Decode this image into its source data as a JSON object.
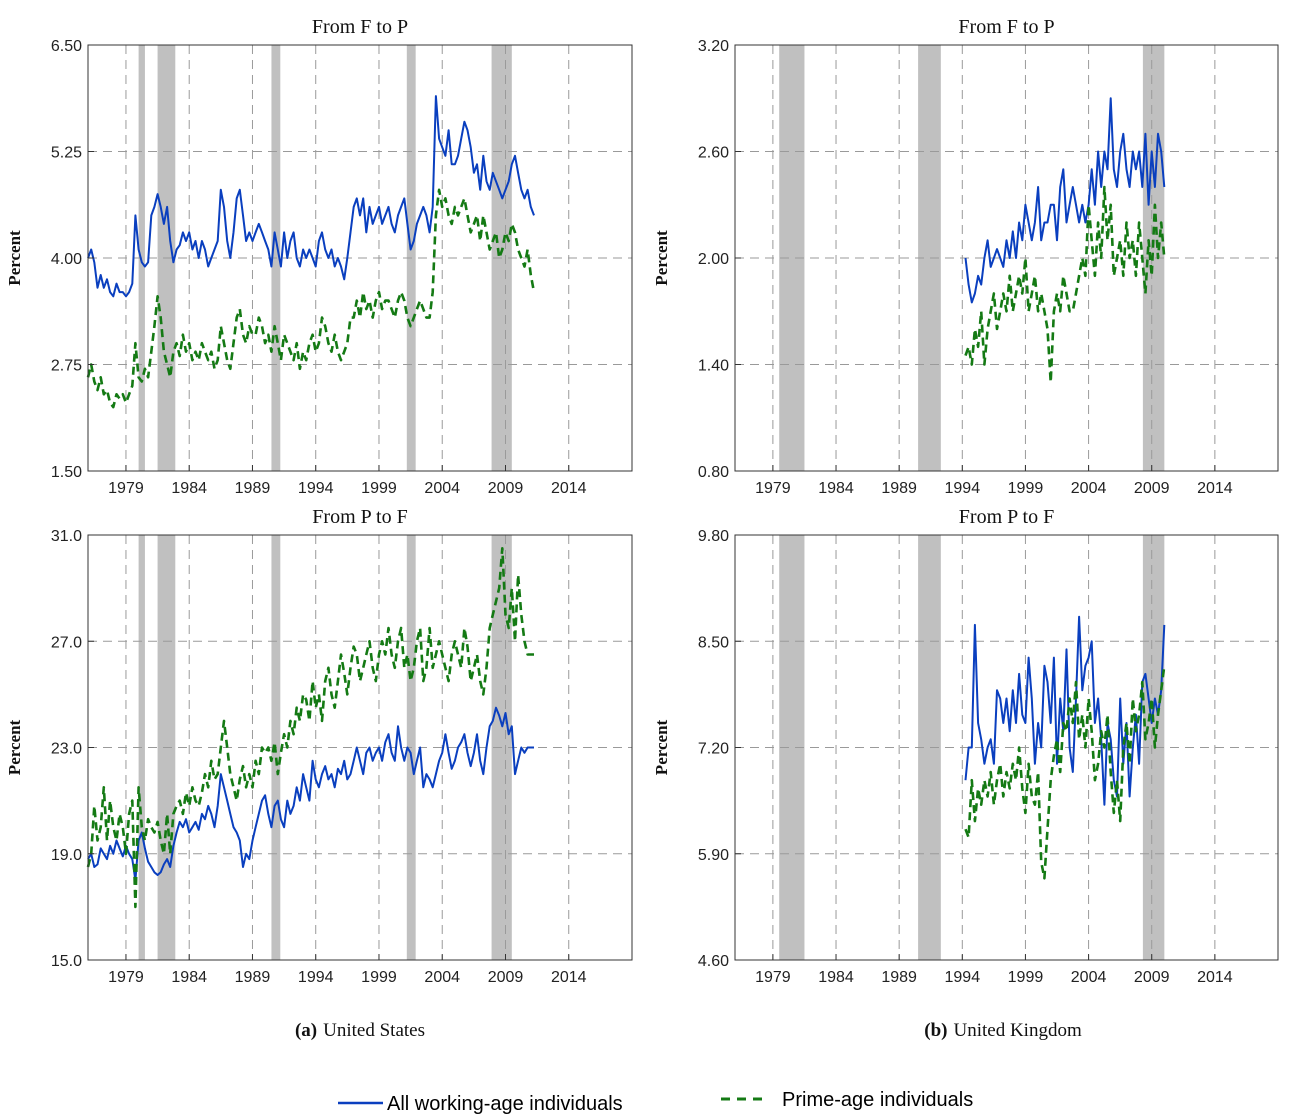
{
  "captions": [
    {
      "tag": "(a)",
      "text": "United States"
    },
    {
      "tag": "(b)",
      "text": "United Kingdom"
    }
  ],
  "legend": [
    {
      "name": "All working-age individuals",
      "color": "#0a3fbf",
      "dash": "solid"
    },
    {
      "name": "Prime-age individuals",
      "color": "#147a14",
      "dash": "dashed"
    }
  ],
  "colors": {
    "recession": "#c0c0c0",
    "grid": "#9a9a9a",
    "series_all": "#0a3fbf",
    "series_prime": "#147a14"
  },
  "chart_data": [
    {
      "type": "line",
      "title": "From F to P",
      "country": "United States",
      "ylabel": "Percent",
      "xlim": [
        1976,
        2019
      ],
      "ylim": [
        1.5,
        6.5
      ],
      "xticks": [
        "1979",
        "1984",
        "1989",
        "1994",
        "1999",
        "2004",
        "2009",
        "2014"
      ],
      "yticks": [
        "1.50",
        "2.75",
        "4.00",
        "5.25",
        "6.50"
      ],
      "recessions": [
        [
          1980.0,
          1980.5
        ],
        [
          1981.5,
          1982.9
        ],
        [
          1990.5,
          1991.2
        ],
        [
          2001.2,
          2001.9
        ],
        [
          2007.9,
          2009.5
        ]
      ],
      "series": [
        {
          "name": "All working-age individuals",
          "x_start": 1976.0,
          "x_step": 0.25,
          "values": [
            4.0,
            4.1,
            3.95,
            3.65,
            3.8,
            3.65,
            3.75,
            3.6,
            3.55,
            3.7,
            3.6,
            3.6,
            3.55,
            3.6,
            3.7,
            4.5,
            4.1,
            3.95,
            3.9,
            3.95,
            4.5,
            4.6,
            4.75,
            4.6,
            4.4,
            4.6,
            4.2,
            3.95,
            4.1,
            4.15,
            4.3,
            4.2,
            4.3,
            4.1,
            4.2,
            4.0,
            4.2,
            4.1,
            3.9,
            4.0,
            4.1,
            4.2,
            4.8,
            4.6,
            4.2,
            4.0,
            4.3,
            4.7,
            4.8,
            4.5,
            4.2,
            4.3,
            4.2,
            4.3,
            4.4,
            4.3,
            4.2,
            4.1,
            3.9,
            4.3,
            4.1,
            3.9,
            4.3,
            4.0,
            4.2,
            4.3,
            4.0,
            3.9,
            4.1,
            4.0,
            4.1,
            4.0,
            3.9,
            4.2,
            4.3,
            4.1,
            4.0,
            4.1,
            3.9,
            4.0,
            3.9,
            3.75,
            4.0,
            4.3,
            4.6,
            4.7,
            4.5,
            4.7,
            4.3,
            4.6,
            4.4,
            4.5,
            4.6,
            4.4,
            4.5,
            4.6,
            4.4,
            4.3,
            4.5,
            4.6,
            4.7,
            4.4,
            4.1,
            4.2,
            4.4,
            4.5,
            4.6,
            4.5,
            4.3,
            4.6,
            5.9,
            5.4,
            5.3,
            5.2,
            5.5,
            5.1,
            5.1,
            5.2,
            5.4,
            5.6,
            5.5,
            5.3,
            5.0,
            5.1,
            4.8,
            5.2,
            4.9,
            4.8,
            5.0,
            4.9,
            4.8,
            4.7,
            4.8,
            4.9,
            5.1,
            5.2,
            5.0,
            4.8,
            4.7,
            4.8,
            4.6,
            4.5
          ]
        },
        {
          "name": "Prime-age individuals",
          "x_start": 1976.0,
          "x_step": 0.25,
          "values": [
            2.6,
            2.75,
            2.55,
            2.45,
            2.6,
            2.4,
            2.45,
            2.3,
            2.25,
            2.4,
            2.35,
            2.4,
            2.3,
            2.4,
            2.5,
            3.0,
            2.6,
            2.55,
            2.7,
            2.6,
            2.9,
            3.2,
            3.55,
            3.3,
            2.9,
            2.75,
            2.6,
            2.9,
            3.0,
            2.85,
            3.1,
            2.9,
            3.0,
            2.8,
            2.9,
            2.8,
            3.0,
            2.9,
            2.8,
            2.9,
            2.7,
            2.8,
            3.2,
            3.0,
            2.8,
            2.7,
            3.0,
            3.3,
            3.4,
            3.1,
            3.0,
            3.2,
            3.1,
            3.1,
            3.3,
            3.2,
            3.0,
            3.1,
            2.9,
            3.2,
            3.0,
            2.8,
            3.1,
            3.0,
            2.9,
            2.8,
            3.0,
            2.7,
            2.9,
            2.8,
            3.0,
            3.1,
            2.9,
            3.0,
            3.3,
            3.2,
            3.0,
            2.9,
            3.1,
            2.9,
            2.8,
            2.9,
            3.0,
            3.3,
            3.3,
            3.5,
            3.3,
            3.6,
            3.4,
            3.5,
            3.3,
            3.5,
            3.6,
            3.4,
            3.5,
            3.5,
            3.4,
            3.3,
            3.5,
            3.6,
            3.5,
            3.3,
            3.2,
            3.3,
            3.4,
            3.5,
            3.4,
            3.3,
            3.3,
            3.6,
            4.5,
            4.8,
            4.6,
            4.7,
            4.5,
            4.4,
            4.6,
            4.5,
            4.6,
            4.7,
            4.5,
            4.3,
            4.4,
            4.5,
            4.2,
            4.5,
            4.3,
            4.1,
            4.2,
            4.3,
            4.0,
            4.1,
            4.3,
            4.2,
            4.4,
            4.3,
            4.1,
            4.0,
            3.9,
            4.1,
            3.8,
            3.6
          ]
        }
      ]
    },
    {
      "type": "line",
      "title": "From F to P",
      "country": "United Kingdom",
      "ylabel": "Percent",
      "xlim": [
        1976,
        2019
      ],
      "ylim": [
        0.8,
        3.2
      ],
      "xticks": [
        "1979",
        "1984",
        "1989",
        "1994",
        "1999",
        "2004",
        "2009",
        "2014"
      ],
      "yticks": [
        "0.80",
        "1.40",
        "2.00",
        "2.60",
        "3.20"
      ],
      "recessions": [
        [
          1979.5,
          1981.5
        ],
        [
          1990.5,
          1992.3
        ],
        [
          2008.3,
          2010.0
        ]
      ],
      "series": [
        {
          "name": "All working-age individuals",
          "x_start": 1994.25,
          "x_step": 0.25,
          "values": [
            2.0,
            1.85,
            1.75,
            1.8,
            1.9,
            1.85,
            2.0,
            2.1,
            1.95,
            2.0,
            2.05,
            2.0,
            1.95,
            2.1,
            2.0,
            2.15,
            2.0,
            2.2,
            2.1,
            2.3,
            2.2,
            2.1,
            2.2,
            2.4,
            2.1,
            2.2,
            2.2,
            2.3,
            2.3,
            2.1,
            2.4,
            2.5,
            2.2,
            2.3,
            2.4,
            2.3,
            2.2,
            2.3,
            2.2,
            2.3,
            2.5,
            2.3,
            2.6,
            2.4,
            2.6,
            2.5,
            2.9,
            2.5,
            2.4,
            2.6,
            2.7,
            2.5,
            2.4,
            2.6,
            2.5,
            2.6,
            2.4,
            2.7,
            2.3,
            2.6,
            2.4,
            2.7,
            2.6,
            2.4
          ]
        },
        {
          "name": "Prime-age individuals",
          "x_start": 1994.25,
          "x_step": 0.25,
          "values": [
            1.45,
            1.5,
            1.4,
            1.6,
            1.5,
            1.7,
            1.4,
            1.6,
            1.7,
            1.8,
            1.6,
            1.7,
            1.8,
            1.7,
            1.9,
            1.7,
            1.8,
            1.9,
            1.8,
            2.0,
            1.7,
            1.8,
            1.9,
            1.7,
            1.8,
            1.7,
            1.6,
            1.3,
            1.7,
            1.8,
            1.7,
            1.9,
            1.8,
            1.7,
            1.7,
            1.8,
            1.9,
            2.0,
            1.9,
            2.3,
            2.1,
            1.9,
            2.2,
            2.0,
            2.4,
            2.1,
            2.3,
            1.9,
            2.0,
            2.1,
            1.9,
            2.2,
            2.0,
            2.1,
            1.9,
            2.2,
            2.0,
            1.8,
            2.1,
            1.9,
            2.3,
            2.0,
            2.2,
            2.0
          ]
        }
      ]
    },
    {
      "type": "line",
      "title": "From P to F",
      "country": "United States",
      "ylabel": "Percent",
      "xlim": [
        1976,
        2019
      ],
      "ylim": [
        15.0,
        31.0
      ],
      "xticks": [
        "1979",
        "1984",
        "1989",
        "1994",
        "1999",
        "2004",
        "2009",
        "2014"
      ],
      "yticks": [
        "15.0",
        "19.0",
        "23.0",
        "27.0",
        "31.0"
      ],
      "recessions": [
        [
          1980.0,
          1980.5
        ],
        [
          1981.5,
          1982.9
        ],
        [
          1990.5,
          1991.2
        ],
        [
          2001.2,
          2001.9
        ],
        [
          2007.9,
          2009.5
        ]
      ],
      "series": [
        {
          "name": "All working-age individuals",
          "x_start": 1976.0,
          "x_step": 0.25,
          "values": [
            18.8,
            19.0,
            18.5,
            18.6,
            19.2,
            19.0,
            18.8,
            19.3,
            19.0,
            19.5,
            19.2,
            18.9,
            19.3,
            19.0,
            18.8,
            18.0,
            19.5,
            19.8,
            19.2,
            18.7,
            18.5,
            18.3,
            18.2,
            18.3,
            18.6,
            18.8,
            18.5,
            19.3,
            19.8,
            20.2,
            20.0,
            20.3,
            19.8,
            20.0,
            20.2,
            19.9,
            20.5,
            20.3,
            20.8,
            20.5,
            20.0,
            20.8,
            22.0,
            21.5,
            21.0,
            20.5,
            20.0,
            19.8,
            19.5,
            18.5,
            19.0,
            18.8,
            19.5,
            20.0,
            20.5,
            21.0,
            21.2,
            20.5,
            20.0,
            20.8,
            21.0,
            20.3,
            20.0,
            21.0,
            20.5,
            20.8,
            21.5,
            21.0,
            22.0,
            21.5,
            21.0,
            22.5,
            21.8,
            21.5,
            22.0,
            22.3,
            21.8,
            22.0,
            21.5,
            22.2,
            22.0,
            22.5,
            21.8,
            22.0,
            22.5,
            23.0,
            22.5,
            22.0,
            22.8,
            23.0,
            22.5,
            22.8,
            23.0,
            22.5,
            23.2,
            23.5,
            22.8,
            22.5,
            23.8,
            23.0,
            22.5,
            23.0,
            22.8,
            22.0,
            22.5,
            23.0,
            21.5,
            22.0,
            21.8,
            21.5,
            22.0,
            22.5,
            22.8,
            23.5,
            22.8,
            22.2,
            22.5,
            23.0,
            23.2,
            23.5,
            22.8,
            22.3,
            22.8,
            23.5,
            22.5,
            22.0,
            23.0,
            23.8,
            24.0,
            24.5,
            24.2,
            23.8,
            24.3,
            23.5,
            23.8,
            22.0,
            22.5,
            23.0,
            22.8,
            23.0,
            23.0,
            23.0
          ]
        },
        {
          "name": "Prime-age individuals",
          "x_start": 1976.0,
          "x_step": 0.25,
          "values": [
            18.5,
            19.0,
            20.8,
            19.5,
            20.0,
            21.5,
            19.5,
            21.0,
            20.0,
            19.5,
            20.5,
            20.0,
            19.0,
            20.5,
            21.0,
            17.0,
            21.5,
            20.0,
            19.5,
            20.3,
            20.0,
            19.8,
            20.2,
            19.5,
            19.0,
            20.5,
            19.0,
            20.5,
            20.8,
            21.0,
            20.5,
            21.3,
            20.8,
            21.5,
            21.0,
            20.8,
            21.3,
            22.0,
            21.5,
            22.5,
            21.8,
            22.0,
            23.0,
            24.0,
            23.0,
            22.0,
            21.5,
            21.0,
            21.8,
            22.3,
            21.5,
            22.0,
            21.5,
            22.5,
            22.0,
            23.0,
            22.8,
            23.0,
            22.5,
            23.2,
            22.0,
            22.8,
            23.5,
            23.0,
            24.0,
            23.5,
            24.5,
            24.0,
            25.0,
            24.8,
            24.0,
            25.5,
            24.5,
            25.0,
            24.0,
            25.5,
            26.0,
            25.0,
            24.5,
            25.5,
            26.5,
            25.8,
            25.0,
            26.0,
            26.8,
            26.5,
            25.5,
            26.0,
            26.5,
            27.0,
            26.0,
            25.5,
            26.5,
            27.0,
            26.5,
            27.5,
            26.5,
            26.0,
            27.0,
            27.5,
            26.0,
            26.5,
            25.5,
            26.0,
            27.0,
            27.5,
            25.5,
            26.0,
            27.5,
            26.0,
            26.5,
            27.0,
            26.5,
            26.0,
            25.5,
            26.5,
            27.0,
            26.5,
            26.0,
            27.5,
            26.8,
            25.5,
            26.0,
            26.5,
            25.5,
            25.0,
            26.0,
            27.5,
            28.0,
            28.5,
            29.0,
            30.5,
            28.0,
            27.5,
            29.0,
            27.0,
            29.5,
            28.0,
            27.0,
            26.5,
            26.5,
            26.5
          ]
        }
      ]
    },
    {
      "type": "line",
      "title": "From P to F",
      "country": "United Kingdom",
      "ylabel": "Percent",
      "xlim": [
        1976,
        2019
      ],
      "ylim": [
        4.6,
        9.8
      ],
      "xticks": [
        "1979",
        "1984",
        "1989",
        "1994",
        "1999",
        "2004",
        "2009",
        "2014"
      ],
      "yticks": [
        "4.60",
        "5.90",
        "7.20",
        "8.50",
        "9.80"
      ],
      "recessions": [
        [
          1979.5,
          1981.5
        ],
        [
          1990.5,
          1992.3
        ],
        [
          2008.3,
          2010.0
        ]
      ],
      "series": [
        {
          "name": "All working-age individuals",
          "x_start": 1994.25,
          "x_step": 0.25,
          "values": [
            6.8,
            7.2,
            7.2,
            8.7,
            7.5,
            7.3,
            7.0,
            7.2,
            7.3,
            7.0,
            7.9,
            7.8,
            7.5,
            7.8,
            7.4,
            7.9,
            7.5,
            8.1,
            7.6,
            7.5,
            8.3,
            7.8,
            7.0,
            7.5,
            7.2,
            8.2,
            8.0,
            7.5,
            8.3,
            7.0,
            7.8,
            7.4,
            8.4,
            7.2,
            6.9,
            7.8,
            8.8,
            7.9,
            8.2,
            8.3,
            8.5,
            7.5,
            7.8,
            7.3,
            6.5,
            7.5,
            7.3,
            6.8,
            6.6,
            7.8,
            7.0,
            7.5,
            6.6,
            7.2,
            7.6,
            7.0,
            8.0,
            8.1,
            7.8,
            7.5,
            7.8,
            7.6,
            7.9,
            8.7
          ]
        },
        {
          "name": "Prime-age individuals",
          "x_start": 1994.25,
          "x_step": 0.25,
          "values": [
            6.2,
            6.1,
            6.8,
            6.3,
            6.7,
            6.5,
            6.8,
            6.6,
            6.9,
            6.5,
            6.8,
            7.0,
            6.6,
            6.9,
            6.7,
            7.0,
            6.8,
            7.2,
            6.7,
            6.4,
            7.0,
            6.6,
            6.5,
            6.9,
            5.8,
            5.6,
            6.2,
            6.8,
            7.1,
            7.3,
            6.9,
            7.5,
            7.4,
            7.8,
            7.5,
            8.0,
            7.3,
            7.6,
            7.2,
            7.8,
            7.4,
            6.8,
            7.0,
            7.4,
            7.2,
            7.6,
            6.9,
            6.4,
            6.8,
            6.3,
            7.2,
            7.5,
            7.0,
            7.8,
            7.4,
            7.6,
            8.0,
            7.3,
            7.5,
            7.8,
            7.2,
            7.6,
            7.9,
            8.2
          ]
        }
      ]
    }
  ]
}
